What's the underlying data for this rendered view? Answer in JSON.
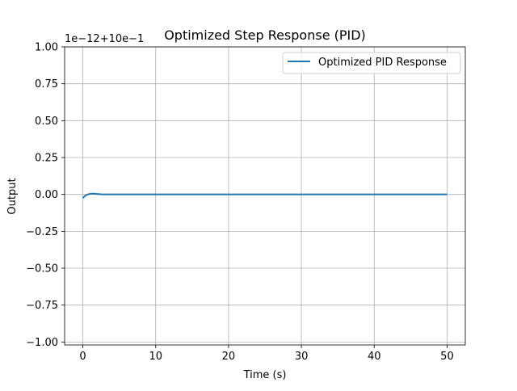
{
  "chart_data": {
    "type": "line",
    "title": "Optimized Step Response (PID)",
    "xlabel": "Time (s)",
    "ylabel": "Output",
    "offset_text": "1e−12+10e−1",
    "xlim": [
      -2.5,
      52.5
    ],
    "ylim": [
      -1.02,
      1.0
    ],
    "x_ticks": [
      0,
      10,
      20,
      30,
      40,
      50
    ],
    "x_tick_labels": [
      "0",
      "10",
      "20",
      "30",
      "40",
      "50"
    ],
    "y_ticks": [
      -1.0,
      -0.75,
      -0.5,
      -0.25,
      0.0,
      0.25,
      0.5,
      0.75,
      1.0
    ],
    "y_tick_labels": [
      "−1.00",
      "−0.75",
      "−0.50",
      "−0.25",
      "0.00",
      "0.25",
      "0.50",
      "0.75",
      "1.00"
    ],
    "grid": true,
    "legend_position": "upper right",
    "series": [
      {
        "name": "Optimized PID Response",
        "color": "#1f77b4",
        "x": [
          0,
          0.25,
          0.5,
          0.75,
          1.0,
          1.25,
          1.5,
          1.75,
          2.0,
          2.5,
          3.0,
          4.0,
          5.0,
          10,
          20,
          30,
          40,
          50
        ],
        "y": [
          -0.025,
          -0.012,
          -0.004,
          0.001,
          0.004,
          0.005,
          0.005,
          0.004,
          0.003,
          0.001,
          0.0,
          0.0,
          0.0,
          0.0,
          0.0,
          0.0,
          0.0,
          0.0
        ]
      }
    ]
  }
}
